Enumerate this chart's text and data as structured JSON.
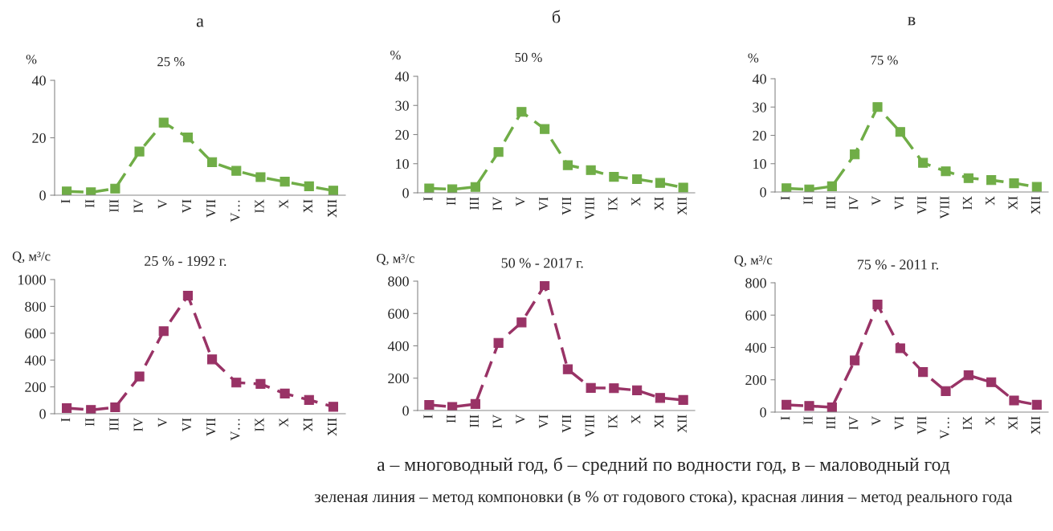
{
  "chart_data": [
    {
      "type": "line",
      "title": "а",
      "subtitle": "25 %",
      "ylabel": "%",
      "categories": [
        "I",
        "II",
        "III",
        "IV",
        "V",
        "VI",
        "VII",
        "V…",
        "IX",
        "X",
        "XI",
        "XII"
      ],
      "series": [
        {
          "color": "#70ad47",
          "values": [
            1.3,
            1.0,
            2.3,
            15.2,
            25.3,
            20.1,
            11.5,
            8.5,
            6.3,
            4.7,
            3.1,
            1.6
          ]
        }
      ],
      "ylim": [
        0,
        40
      ],
      "yticks": [
        0,
        20,
        40
      ],
      "marker": "square",
      "line_style": "dashed",
      "grid": false,
      "legend": false
    },
    {
      "type": "line",
      "title": "б",
      "subtitle": "50 %",
      "ylabel": "%",
      "categories": [
        "I",
        "II",
        "III",
        "IV",
        "V",
        "VI",
        "VII",
        "VIII",
        "IX",
        "X",
        "XI",
        "XII"
      ],
      "series": [
        {
          "color": "#70ad47",
          "values": [
            1.5,
            1.2,
            2.0,
            14.0,
            27.8,
            21.9,
            9.5,
            7.8,
            5.5,
            4.7,
            3.4,
            1.8
          ]
        }
      ],
      "ylim": [
        0,
        40
      ],
      "yticks": [
        0,
        10,
        20,
        30,
        40
      ],
      "marker": "square",
      "line_style": "dashed",
      "grid": false,
      "legend": false
    },
    {
      "type": "line",
      "title": "в",
      "subtitle": "75 %",
      "ylabel": "%",
      "categories": [
        "I",
        "II",
        "III",
        "IV",
        "V",
        "VI",
        "VII",
        "VIII",
        "IX",
        "X",
        "XI",
        "XII"
      ],
      "series": [
        {
          "color": "#70ad47",
          "values": [
            1.3,
            0.9,
            2.0,
            13.3,
            30.0,
            21.2,
            10.3,
            7.3,
            4.9,
            4.2,
            3.1,
            1.8
          ]
        }
      ],
      "ylim": [
        0,
        40
      ],
      "yticks": [
        0,
        10,
        20,
        30,
        40
      ],
      "marker": "square",
      "line_style": "dashed",
      "grid": false,
      "legend": false
    },
    {
      "type": "line",
      "title": "25 % - 1992 г.",
      "ylabel": "Q, м³/с",
      "categories": [
        "I",
        "II",
        "III",
        "IV",
        "V",
        "VI",
        "VII",
        "V…",
        "IX",
        "X",
        "XI",
        "XII"
      ],
      "series": [
        {
          "color": "#993366",
          "values": [
            42,
            28,
            48,
            278,
            615,
            880,
            405,
            232,
            222,
            150,
            103,
            52
          ]
        }
      ],
      "ylim": [
        0,
        1000
      ],
      "yticks": [
        0,
        200,
        400,
        600,
        800,
        1000
      ],
      "marker": "square",
      "line_style": "dashed",
      "grid": false,
      "legend": false
    },
    {
      "type": "line",
      "title": "50 % - 2017 г.",
      "ylabel": "Q, м³/с",
      "categories": [
        "I",
        "II",
        "III",
        "IV",
        "V",
        "VI",
        "VII",
        "VIII",
        "IX",
        "X",
        "XI",
        "XII"
      ],
      "series": [
        {
          "color": "#993366",
          "values": [
            35,
            22,
            40,
            418,
            545,
            775,
            255,
            140,
            138,
            125,
            78,
            65
          ]
        }
      ],
      "ylim": [
        0,
        800
      ],
      "yticks": [
        0,
        200,
        400,
        600,
        800
      ],
      "marker": "square",
      "line_style": "dashed",
      "grid": false,
      "legend": false
    },
    {
      "type": "line",
      "title": "75 % - 2011 г.",
      "ylabel": "Q, м³/с",
      "categories": [
        "I",
        "II",
        "III",
        "IV",
        "V",
        "VI",
        "VII",
        "V…",
        "IX",
        "X",
        "XI",
        "XII"
      ],
      "series": [
        {
          "color": "#993366",
          "values": [
            45,
            38,
            30,
            320,
            665,
            395,
            248,
            130,
            228,
            185,
            72,
            45
          ]
        }
      ],
      "ylim": [
        0,
        800
      ],
      "yticks": [
        0,
        200,
        400,
        600,
        800
      ],
      "marker": "square",
      "line_style": "dashed",
      "grid": false,
      "legend": false,
      "annotations": [
        "а – многоводный год, б – средний по водности год, в – маловодный год",
        "зеленая линия – метод компоновки (в % от годового стока), красная линия – метод реального года"
      ]
    }
  ]
}
